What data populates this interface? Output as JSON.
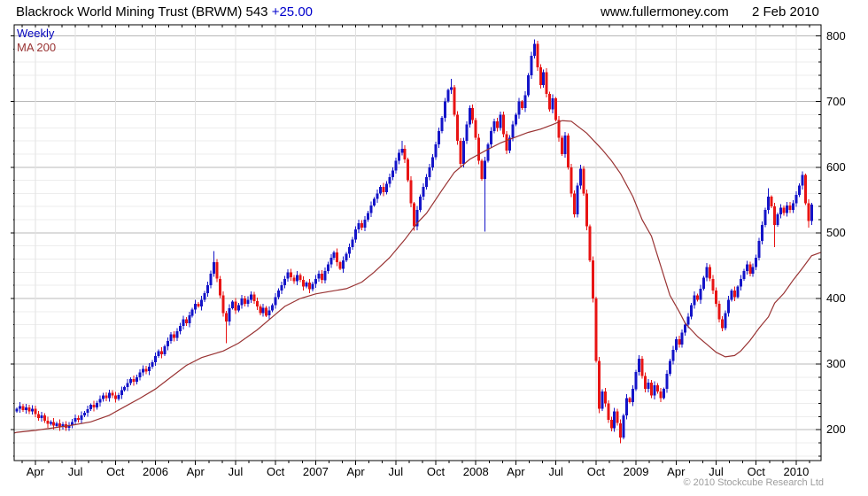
{
  "header": {
    "title": "Blackrock World Mining Trust (BRWM) 543",
    "change": "+25.00",
    "site": "www.fullermoney.com",
    "date": "2 Feb 2010"
  },
  "legend": {
    "weekly": "Weekly",
    "ma": "MA 200"
  },
  "footer": {
    "copyright": "© 2010 Stockcube Research Ltd"
  },
  "colors": {
    "up": "#1414c8",
    "down": "#e81414",
    "ma": "#993333",
    "grid_major": "#b8b8b8",
    "grid_minor": "#ededed",
    "grid_vertical": "#e2e2e2",
    "frame": "#000000",
    "tick": "#000000"
  },
  "chart_data": {
    "type": "candlestick",
    "interval": "weekly",
    "title": "Blackrock World Mining Trust (BRWM)",
    "last_price": 543,
    "change": "+25.00",
    "legend": [
      "Weekly",
      "MA 200"
    ],
    "ylim": [
      153,
      817
    ],
    "y_ticks": [
      800,
      700,
      600,
      500,
      400,
      300,
      200
    ],
    "y_minor_step": 20,
    "x_labels": [
      {
        "label": "Apr",
        "week": 6
      },
      {
        "label": "Jul",
        "week": 19
      },
      {
        "label": "Oct",
        "week": 32
      },
      {
        "label": "2006",
        "week": 45
      },
      {
        "label": "Apr",
        "week": 58
      },
      {
        "label": "Jul",
        "week": 71
      },
      {
        "label": "Oct",
        "week": 84
      },
      {
        "label": "2007",
        "week": 97
      },
      {
        "label": "Apr",
        "week": 110
      },
      {
        "label": "Jul",
        "week": 123
      },
      {
        "label": "Oct",
        "week": 136
      },
      {
        "label": "2008",
        "week": 149
      },
      {
        "label": "Apr",
        "week": 162
      },
      {
        "label": "Jul",
        "week": 175
      },
      {
        "label": "Oct",
        "week": 188
      },
      {
        "label": "2009",
        "week": 201
      },
      {
        "label": "Apr",
        "week": 214
      },
      {
        "label": "Jul",
        "week": 227
      },
      {
        "label": "Oct",
        "week": 240
      },
      {
        "label": "2010",
        "week": 253
      }
    ],
    "weekly_closes": [
      232,
      236,
      230,
      234,
      228,
      232,
      224,
      218,
      222,
      214,
      209,
      212,
      206,
      210,
      204,
      208,
      203,
      207,
      212,
      218,
      215,
      222,
      226,
      231,
      238,
      234,
      241,
      247,
      252,
      248,
      256,
      252,
      247,
      253,
      260,
      265,
      271,
      277,
      273,
      280,
      287,
      293,
      289,
      296,
      303,
      312,
      320,
      315,
      327,
      335,
      345,
      340,
      350,
      358,
      368,
      362,
      374,
      383,
      392,
      388,
      398,
      408,
      420,
      438,
      455,
      430,
      405,
      378,
      365,
      385,
      395,
      382,
      390,
      400,
      392,
      398,
      406,
      396,
      388,
      378,
      386,
      374,
      382,
      390,
      402,
      412,
      420,
      430,
      440,
      432,
      426,
      436,
      428,
      418,
      424,
      414,
      422,
      430,
      438,
      428,
      442,
      452,
      462,
      470,
      455,
      445,
      458,
      468,
      478,
      490,
      505,
      515,
      508,
      520,
      530,
      542,
      552,
      560,
      570,
      562,
      575,
      585,
      595,
      610,
      622,
      628,
      612,
      580,
      545,
      510,
      535,
      555,
      570,
      585,
      600,
      615,
      635,
      655,
      675,
      700,
      718,
      722,
      680,
      640,
      605,
      640,
      665,
      690,
      672,
      645,
      610,
      582,
      610,
      635,
      655,
      670,
      660,
      680,
      650,
      625,
      645,
      665,
      680,
      700,
      690,
      710,
      740,
      770,
      788,
      752,
      725,
      745,
      712,
      688,
      705,
      672,
      645,
      620,
      648,
      600,
      560,
      528,
      572,
      598,
      560,
      510,
      458,
      400,
      305,
      232,
      258,
      240,
      215,
      202,
      228,
      210,
      188,
      222,
      248,
      242,
      262,
      288,
      308,
      282,
      262,
      272,
      252,
      268,
      258,
      248,
      262,
      285,
      305,
      322,
      338,
      330,
      348,
      360,
      372,
      390,
      405,
      398,
      415,
      432,
      448,
      430,
      412,
      392,
      368,
      355,
      378,
      398,
      412,
      402,
      418,
      430,
      442,
      452,
      438,
      448,
      462,
      488,
      512,
      535,
      555,
      540,
      512,
      528,
      538,
      530,
      542,
      535,
      545,
      558,
      572,
      588,
      545,
      518,
      543
    ],
    "wick_overrides": {
      "16": {
        "low": 198
      },
      "64": {
        "high": 472
      },
      "68": {
        "low": 332
      },
      "125": {
        "high": 640
      },
      "129": {
        "low": 503
      },
      "141": {
        "high": 735
      },
      "152": {
        "low": 502
      },
      "168": {
        "high": 795
      },
      "189": {
        "low": 225
      },
      "196": {
        "low": 179
      },
      "244": {
        "high": 568
      },
      "246": {
        "low": 478
      },
      "257": {
        "low": 508
      },
      "258": {
        "low": 512
      }
    },
    "ma_label": "MA 200",
    "ma_points": [
      [
        -1,
        195
      ],
      [
        0,
        196
      ],
      [
        6,
        199
      ],
      [
        12,
        203
      ],
      [
        18,
        207
      ],
      [
        24,
        212
      ],
      [
        30,
        222
      ],
      [
        35,
        235
      ],
      [
        40,
        248
      ],
      [
        45,
        262
      ],
      [
        50,
        280
      ],
      [
        55,
        298
      ],
      [
        60,
        310
      ],
      [
        67,
        320
      ],
      [
        72,
        332
      ],
      [
        78,
        352
      ],
      [
        83,
        372
      ],
      [
        87,
        388
      ],
      [
        92,
        400
      ],
      [
        97,
        407
      ],
      [
        102,
        411
      ],
      [
        107,
        415
      ],
      [
        112,
        425
      ],
      [
        116,
        440
      ],
      [
        121,
        462
      ],
      [
        126,
        490
      ],
      [
        130,
        515
      ],
      [
        133,
        530
      ],
      [
        138,
        565
      ],
      [
        142,
        592
      ],
      [
        147,
        612
      ],
      [
        152,
        625
      ],
      [
        157,
        637
      ],
      [
        162,
        646
      ],
      [
        166,
        653
      ],
      [
        170,
        658
      ],
      [
        174,
        665
      ],
      [
        177,
        671
      ],
      [
        180,
        670
      ],
      [
        185,
        652
      ],
      [
        190,
        627
      ],
      [
        193,
        610
      ],
      [
        196,
        590
      ],
      [
        200,
        555
      ],
      [
        203,
        520
      ],
      [
        206,
        495
      ],
      [
        208,
        465
      ],
      [
        212,
        405
      ],
      [
        215,
        380
      ],
      [
        217,
        362
      ],
      [
        221,
        342
      ],
      [
        224,
        330
      ],
      [
        227,
        318
      ],
      [
        230,
        311
      ],
      [
        233,
        313
      ],
      [
        235,
        320
      ],
      [
        238,
        336
      ],
      [
        241,
        355
      ],
      [
        244,
        372
      ],
      [
        246,
        393
      ],
      [
        249,
        408
      ],
      [
        252,
        428
      ],
      [
        255,
        446
      ],
      [
        258,
        465
      ],
      [
        261,
        470
      ]
    ]
  }
}
